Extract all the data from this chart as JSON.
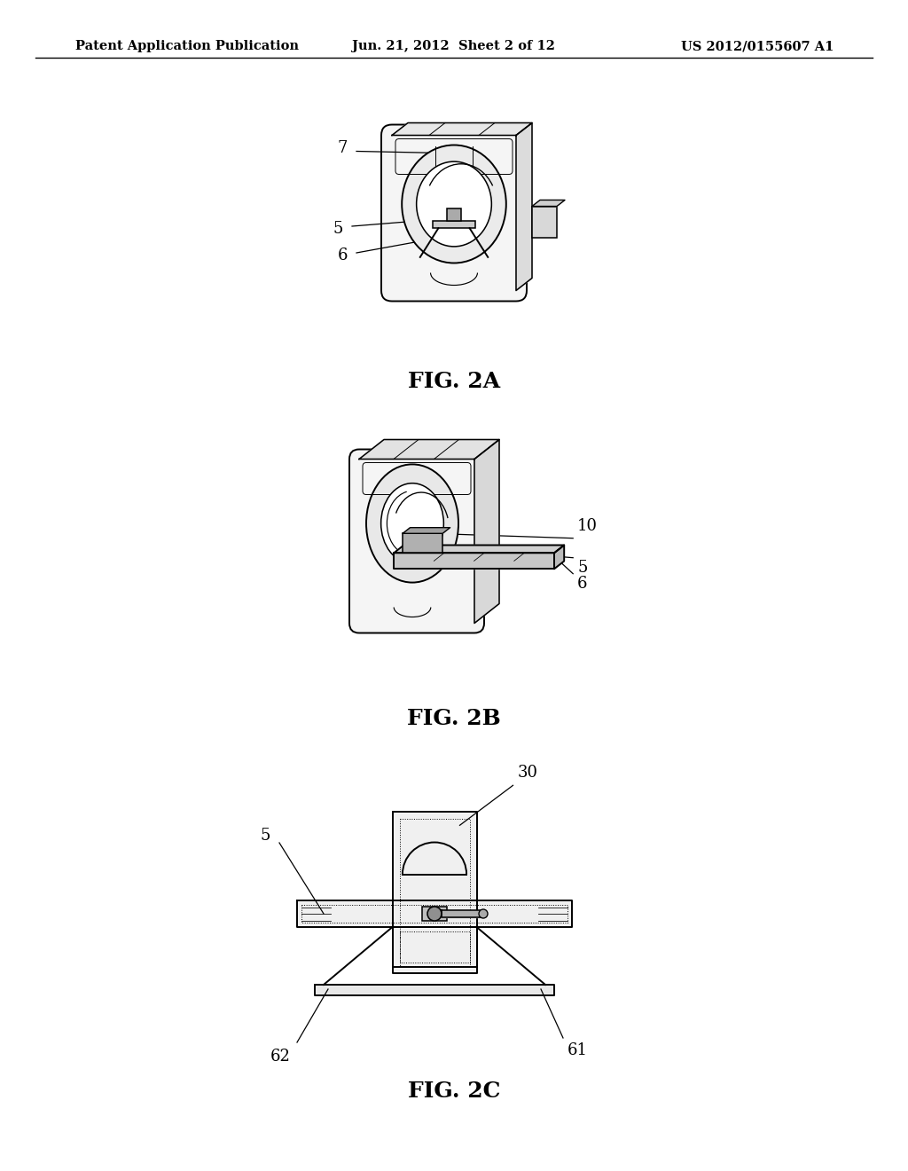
{
  "header_left": "Patent Application Publication",
  "header_center": "Jun. 21, 2012  Sheet 2 of 12",
  "header_right": "US 2012/0155607 A1",
  "fig2a_label": "FIG. 2A",
  "fig2b_label": "FIG. 2B",
  "fig2c_label": "FIG. 2C",
  "background_color": "#ffffff",
  "line_color": "#000000",
  "text_color": "#000000",
  "header_fontsize": 10.5,
  "label_fontsize": 13,
  "fig_label_fontsize": 18
}
